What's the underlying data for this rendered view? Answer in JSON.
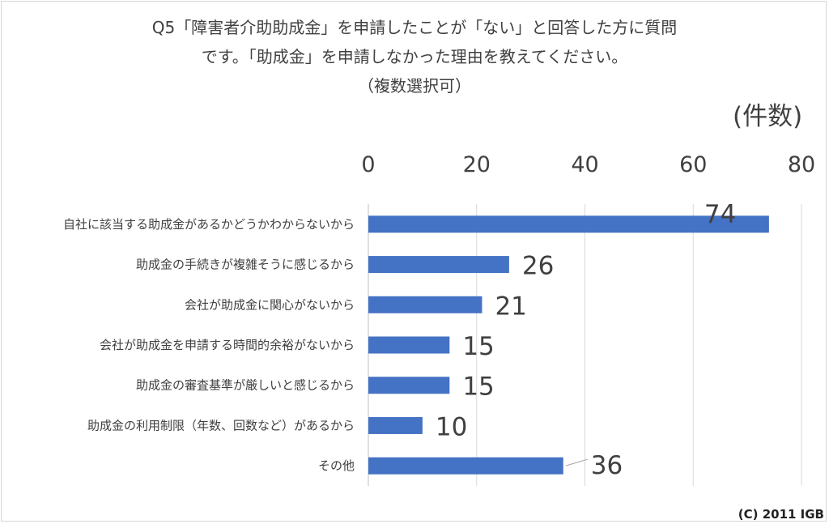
{
  "chart_data": {
    "type": "bar",
    "orientation": "horizontal",
    "title_lines": [
      "Q5「障害者介助助成金」を申請したことが「ない」と回答した方に質問",
      "です。「助成金」を申請しなかった理由を教えてください。",
      "（複数選択可）"
    ],
    "unit_label": "(件数)",
    "categories": [
      "自社に該当する助成金があるかどうかわからないから",
      "助成金の手続きが複雑そうに感じるから",
      "会社が助成金に関心がないから",
      "会社が助成金を申請する時間的余裕がないから",
      "助成金の審査基準が厳しいと感じるから",
      "助成金の利用制限（年数、回数など）があるから",
      "その他"
    ],
    "values": [
      74,
      26,
      21,
      15,
      15,
      10,
      36
    ],
    "xlim": [
      0,
      80
    ],
    "x_ticks": [
      "0",
      "20",
      "40",
      "60",
      "80"
    ],
    "axis_position": "top",
    "grid": true,
    "bar_color": "#4472c4"
  },
  "credit": "(C) 2011 IGB"
}
